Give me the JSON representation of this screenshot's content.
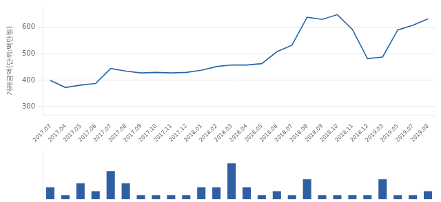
{
  "chart_data": [
    {
      "type": "line",
      "categories": [
        "2017.03",
        "2017.04",
        "2017.05",
        "2017.06",
        "2017.07",
        "2017.08",
        "2017.09",
        "2017.10",
        "2017.11",
        "2017.12",
        "2018.01",
        "2018.02",
        "2018.03",
        "2018.04",
        "2018.05",
        "2018.06",
        "2018.07",
        "2018.08",
        "2018.09",
        "2018.10",
        "2018.11",
        "2018.12",
        "2019.03",
        "2019.05",
        "2019.07",
        "2019.08"
      ],
      "values": [
        400,
        373,
        382,
        388,
        445,
        435,
        428,
        430,
        428,
        430,
        438,
        452,
        458,
        458,
        463,
        508,
        533,
        638,
        630,
        648,
        592,
        482,
        488,
        590,
        608,
        632
      ],
      "color": "#2563a8",
      "y_label": "거래금액(단위:백만원)",
      "ylim": [
        268,
        680
      ],
      "yticks": [
        300,
        400,
        500,
        600
      ],
      "grid": true
    },
    {
      "type": "bar",
      "categories": [
        "2017.03",
        "2017.04",
        "2017.05",
        "2017.06",
        "2017.07",
        "2017.08",
        "2017.09",
        "2017.10",
        "2017.11",
        "2017.12",
        "2018.01",
        "2018.02",
        "2018.03",
        "2018.04",
        "2018.05",
        "2018.06",
        "2018.07",
        "2018.08",
        "2018.09",
        "2018.10",
        "2018.11",
        "2018.12",
        "2019.03",
        "2019.05",
        "2019.07",
        "2019.08"
      ],
      "values": [
        3,
        1,
        4,
        2,
        7,
        4,
        1,
        1,
        1,
        1,
        3,
        3,
        9,
        3,
        1,
        2,
        1,
        5,
        1,
        1,
        1,
        1,
        5,
        1,
        1,
        2
      ],
      "color": "#2e5fa3",
      "ylim": [
        0,
        12
      ],
      "tick_labels": false,
      "grid": false
    }
  ]
}
